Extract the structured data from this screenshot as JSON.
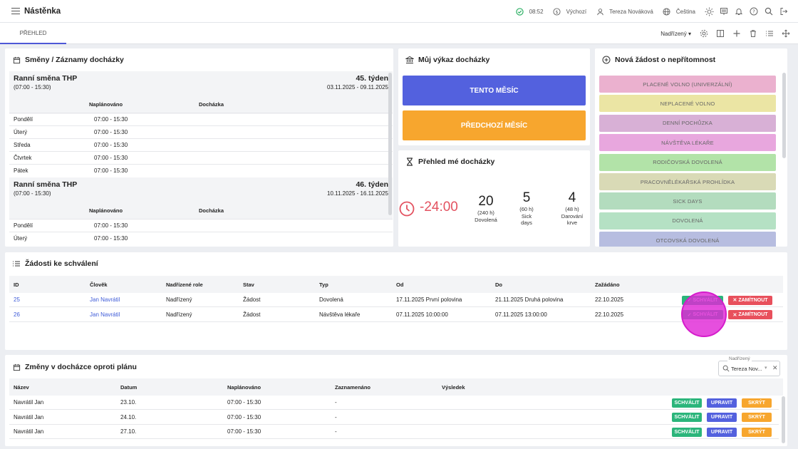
{
  "header": {
    "title": "Nástěnka",
    "time": "08:52",
    "currency": "Výchozí",
    "user": "Tereza Nováková",
    "language": "Čeština"
  },
  "tabs": [
    {
      "label": "PŘEHLED"
    }
  ],
  "toolbar": {
    "role": "Nadřízený"
  },
  "shifts_card": {
    "title": "Směny / Záznamy docházky",
    "col_planned": "Naplánováno",
    "col_attendance": "Docházka",
    "weeks": [
      {
        "shift": "Ranní směna THP",
        "time": "(07:00 - 15:30)",
        "week": "45. týden",
        "range": "03.11.2025 - 09.11.2025",
        "days": [
          {
            "day": "Pondělí",
            "time": "07:00 - 15:30"
          },
          {
            "day": "Úterý",
            "time": "07:00 - 15:30"
          },
          {
            "day": "Středa",
            "time": "07:00 - 15:30"
          },
          {
            "day": "Čtvrtek",
            "time": "07:00 - 15:30"
          },
          {
            "day": "Pátek",
            "time": "07:00 - 15:30"
          }
        ]
      },
      {
        "shift": "Ranní směna THP",
        "time": "(07:00 - 15:30)",
        "week": "46. týden",
        "range": "10.11.2025 - 16.11.2025",
        "days": [
          {
            "day": "Pondělí",
            "time": "07:00 - 15:30"
          },
          {
            "day": "Úterý",
            "time": "07:00 - 15:30"
          }
        ]
      }
    ]
  },
  "statement_card": {
    "title": "Můj výkaz docházky",
    "this_month": "TENTO MĚSÍC",
    "prev_month": "PŘEDCHOZÍ MĚSÍC",
    "colors": {
      "this_month": "#5361de",
      "prev_month": "#f7a62e"
    }
  },
  "overview_card": {
    "title": "Přehled mé docházky",
    "balance": "-24:00",
    "balance_color": "#e35260",
    "items": [
      {
        "value": "20",
        "hours": "(240 h)",
        "label": "Dovolená"
      },
      {
        "value": "5",
        "hours": "(60 h)",
        "label": "Sick days"
      },
      {
        "value": "4",
        "hours": "(48 h)",
        "label": "Darování krve"
      }
    ]
  },
  "absence_card": {
    "title": "Nová žádost o nepřítomnost",
    "types": [
      {
        "label": "PLACENÉ VOLNO (UNIVERZÁLNÍ)",
        "color": "#ebb1cf"
      },
      {
        "label": "NEPLACENÉ VOLNO",
        "color": "#ebe5a4"
      },
      {
        "label": "DENNÍ POCHŮZKA",
        "color": "#d8b0d6"
      },
      {
        "label": "NÁVŠTĚVA LÉKAŘE",
        "color": "#e8a7de"
      },
      {
        "label": "RODIČOVSKÁ DOVOLENÁ",
        "color": "#b2e3a8"
      },
      {
        "label": "PRACOVNĚLÉKAŘSKÁ PROHLÍDKA",
        "color": "#d9dab6"
      },
      {
        "label": "SICK DAYS",
        "color": "#b3dcbe"
      },
      {
        "label": "DOVOLENÁ",
        "color": "#b5e1c4"
      },
      {
        "label": "OTCOVSKÁ DOVOLENÁ",
        "color": "#b7bde0"
      }
    ]
  },
  "requests_card": {
    "title": "Žádosti ke schválení",
    "columns": [
      "ID",
      "Člověk",
      "Nadřízené role",
      "Stav",
      "Typ",
      "Od",
      "Do",
      "Zažádáno"
    ],
    "approve": "SCHVÁLIT",
    "reject": "ZAMÍTNOUT",
    "rows": [
      {
        "id": "25",
        "person": "Jan Navrátil",
        "role": "Nadřízený",
        "state": "Žádost",
        "type": "Dovolená",
        "from": "17.11.2025 První polovina",
        "to": "21.11.2025 Druhá polovina",
        "requested": "22.10.2025"
      },
      {
        "id": "26",
        "person": "Jan Navrátil",
        "role": "Nadřízený",
        "state": "Žádost",
        "type": "Návštěva lékaře",
        "from": "07.11.2025 10:00:00",
        "to": "07.11.2025 13:00:00",
        "requested": "22.10.2025"
      }
    ]
  },
  "changes_card": {
    "title": "Změny v docházce oproti plánu",
    "filter_label": "Nadřízený",
    "filter_value": "Tereza Nov...",
    "columns": [
      "Název",
      "Datum",
      "Naplánováno",
      "Zaznamenáno",
      "Výsledek"
    ],
    "btn_approve": "SCHVÁLIT",
    "btn_edit": "UPRAVIT",
    "btn_hide": "SKRÝT",
    "rows": [
      {
        "name": "Navrátil Jan",
        "date": "23.10.",
        "planned": "07:00 - 15:30",
        "recorded": "-"
      },
      {
        "name": "Navrátil Jan",
        "date": "24.10.",
        "planned": "07:00 - 15:30",
        "recorded": "-"
      },
      {
        "name": "Navrátil Jan",
        "date": "27.10.",
        "planned": "07:00 - 15:30",
        "recorded": "-"
      }
    ]
  }
}
